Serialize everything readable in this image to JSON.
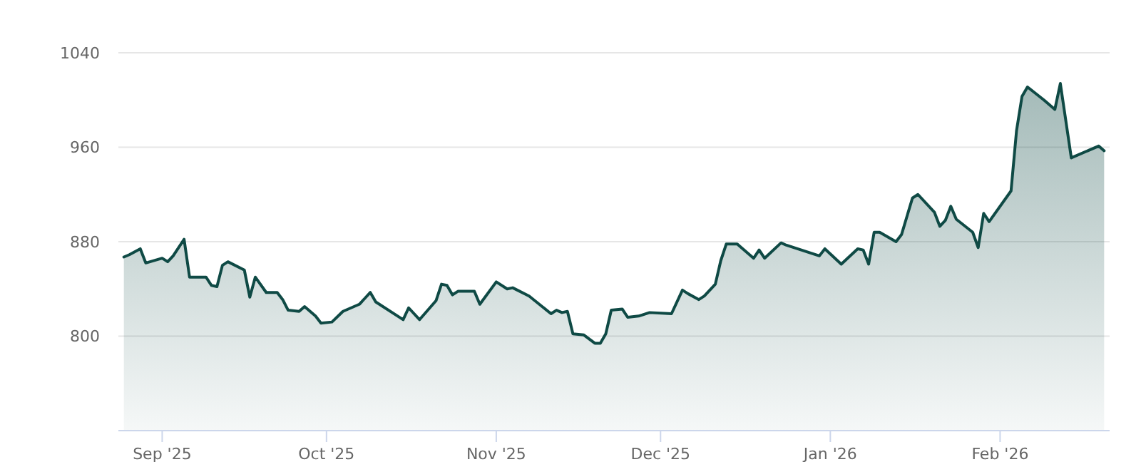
{
  "chart_data": {
    "type": "area",
    "x": [
      "2025-08-25",
      "2025-08-26",
      "2025-08-28",
      "2025-08-29",
      "2025-09-01",
      "2025-09-02",
      "2025-09-03",
      "2025-09-05",
      "2025-09-06",
      "2025-09-09",
      "2025-09-10",
      "2025-09-11",
      "2025-09-12",
      "2025-09-13",
      "2025-09-16",
      "2025-09-17",
      "2025-09-18",
      "2025-09-20",
      "2025-09-22",
      "2025-09-23",
      "2025-09-24",
      "2025-09-26",
      "2025-09-27",
      "2025-09-29",
      "2025-09-30",
      "2025-10-02",
      "2025-10-04",
      "2025-10-07",
      "2025-10-08",
      "2025-10-09",
      "2025-10-10",
      "2025-10-14",
      "2025-10-15",
      "2025-10-16",
      "2025-10-18",
      "2025-10-21",
      "2025-10-22",
      "2025-10-23",
      "2025-10-24",
      "2025-10-25",
      "2025-10-28",
      "2025-10-29",
      "2025-11-01",
      "2025-11-03",
      "2025-11-04",
      "2025-11-07",
      "2025-11-11",
      "2025-11-12",
      "2025-11-13",
      "2025-11-14",
      "2025-11-15",
      "2025-11-17",
      "2025-11-19",
      "2025-11-20",
      "2025-11-21",
      "2025-11-22",
      "2025-11-24",
      "2025-11-25",
      "2025-11-27",
      "2025-11-29",
      "2025-12-03",
      "2025-12-05",
      "2025-12-06",
      "2025-12-08",
      "2025-12-09",
      "2025-12-11",
      "2025-12-12",
      "2025-12-13",
      "2025-12-15",
      "2025-12-18",
      "2025-12-19",
      "2025-12-20",
      "2025-12-23",
      "2025-12-24",
      "2025-12-30",
      "2025-12-31",
      "2026-01-03",
      "2026-01-06",
      "2026-01-07",
      "2026-01-08",
      "2026-01-09",
      "2026-01-10",
      "2026-01-13",
      "2026-01-14",
      "2026-01-16",
      "2026-01-17",
      "2026-01-20",
      "2026-01-21",
      "2026-01-22",
      "2026-01-23",
      "2026-01-24",
      "2026-01-27",
      "2026-01-28",
      "2026-01-29",
      "2026-01-30",
      "2026-02-03",
      "2026-02-04",
      "2026-02-05",
      "2026-02-06",
      "2026-02-09",
      "2026-02-11",
      "2026-02-12",
      "2026-02-14",
      "2026-02-19",
      "2026-02-20"
    ],
    "series": [
      {
        "color": "#0f4a45",
        "values": [
          867,
          869,
          874,
          862,
          866,
          863,
          868,
          882,
          850,
          850,
          843,
          842,
          860,
          863,
          856,
          833,
          850,
          837,
          837,
          831,
          822,
          821,
          825,
          817,
          811,
          812,
          821,
          827,
          832,
          837,
          829,
          817,
          814,
          824,
          814,
          830,
          844,
          843,
          835,
          838,
          838,
          827,
          846,
          840,
          841,
          834,
          819,
          822,
          820,
          821,
          802,
          801,
          794,
          794,
          802,
          822,
          823,
          816,
          817,
          820,
          819,
          839,
          836,
          831,
          834,
          844,
          864,
          878,
          878,
          866,
          873,
          866,
          879,
          877,
          868,
          874,
          861,
          874,
          873,
          861,
          888,
          888,
          880,
          886,
          917,
          920,
          905,
          893,
          898,
          910,
          899,
          888,
          875,
          904,
          897,
          923,
          974,
          1003,
          1011,
          1000,
          992,
          1014,
          951,
          961,
          957
        ]
      }
    ],
    "xlim": [
      "2025-08-24",
      "2026-02-21"
    ],
    "xticks": [
      {
        "value": "2025-09-01",
        "label": "Sep '25"
      },
      {
        "value": "2025-10-01",
        "label": "Oct '25"
      },
      {
        "value": "2025-11-01",
        "label": "Nov '25"
      },
      {
        "value": "2025-12-01",
        "label": "Dec '25"
      },
      {
        "value": "2026-01-01",
        "label": "Jan '26"
      },
      {
        "value": "2026-02-01",
        "label": "Feb '26"
      }
    ],
    "ylim": [
      720,
      1040
    ],
    "yticks": [
      800,
      880,
      960,
      1040
    ],
    "grid": "y"
  }
}
